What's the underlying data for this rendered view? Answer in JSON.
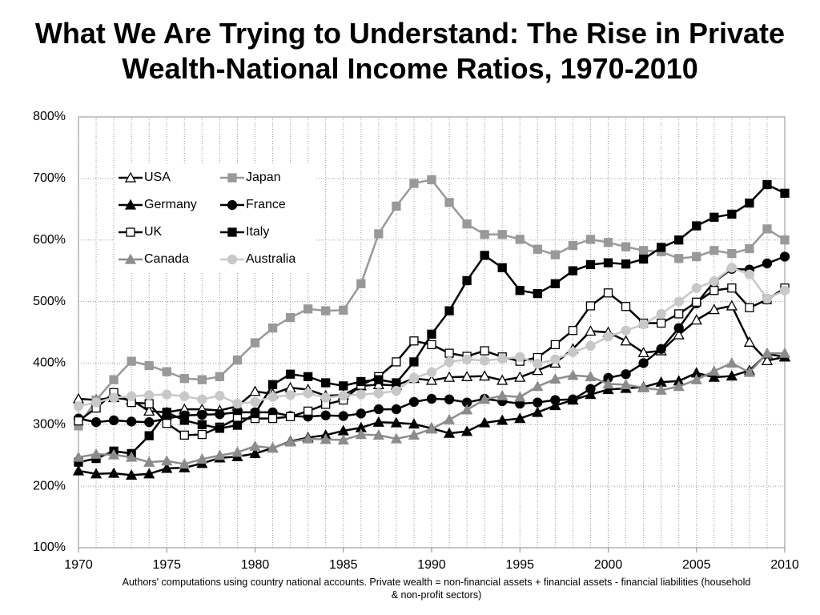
{
  "chart_data": {
    "type": "line",
    "title": "What We Are Trying to Understand: The Rise in Private Wealth-National Income Ratios, 1970-2010",
    "note": "Authors' computations using country national accounts. Private wealth = non-financial assets + financial assets - financial liabilities (household & non-profit sectors)",
    "x": [
      1970,
      1971,
      1972,
      1973,
      1974,
      1975,
      1976,
      1977,
      1978,
      1979,
      1980,
      1981,
      1982,
      1983,
      1984,
      1985,
      1986,
      1987,
      1988,
      1989,
      1990,
      1991,
      1992,
      1993,
      1994,
      1995,
      1996,
      1997,
      1998,
      1999,
      2000,
      2001,
      2002,
      2003,
      2004,
      2005,
      2006,
      2007,
      2008,
      2009,
      2010
    ],
    "xlim": [
      1970,
      2010
    ],
    "xticks": [
      1970,
      1975,
      1980,
      1985,
      1990,
      1995,
      2000,
      2005,
      2010
    ],
    "ylim": [
      100,
      800
    ],
    "yticks": [
      {
        "value": 100,
        "label": "100%"
      },
      {
        "value": 200,
        "label": "200%"
      },
      {
        "value": 300,
        "label": "300%"
      },
      {
        "value": 400,
        "label": "400%"
      },
      {
        "value": 500,
        "label": "500%"
      },
      {
        "value": 600,
        "label": "600%"
      },
      {
        "value": 700,
        "label": "700%"
      },
      {
        "value": 800,
        "label": "800%"
      }
    ],
    "grid": true,
    "legend": "upper-left",
    "series": [
      {
        "name": "USA",
        "color": "#000000",
        "marker": "triangle-open",
        "values": [
          342,
          340,
          344,
          340,
          322,
          320,
          325,
          325,
          323,
          330,
          354,
          350,
          360,
          357,
          347,
          348,
          363,
          365,
          364,
          375,
          372,
          377,
          378,
          379,
          372,
          377,
          388,
          400,
          423,
          452,
          450,
          436,
          417,
          420,
          446,
          470,
          487,
          493,
          434,
          404,
          410
        ]
      },
      {
        "name": "Japan",
        "color": "#999999",
        "marker": "square",
        "values": [
          298,
          340,
          373,
          403,
          396,
          386,
          375,
          373,
          378,
          405,
          433,
          457,
          474,
          488,
          485,
          486,
          529,
          610,
          655,
          692,
          698,
          661,
          626,
          609,
          609,
          601,
          585,
          576,
          591,
          601,
          596,
          589,
          583,
          581,
          570,
          573,
          583,
          578,
          586,
          618,
          600
        ]
      },
      {
        "name": "Germany",
        "color": "#000000",
        "marker": "triangle",
        "values": [
          225,
          220,
          221,
          218,
          220,
          229,
          230,
          237,
          246,
          248,
          253,
          262,
          273,
          279,
          283,
          290,
          295,
          304,
          303,
          301,
          294,
          286,
          289,
          303,
          307,
          310,
          320,
          331,
          340,
          349,
          357,
          359,
          361,
          369,
          371,
          384,
          377,
          379,
          388,
          415,
          410
        ]
      },
      {
        "name": "France",
        "color": "#000000",
        "marker": "circle",
        "values": [
          310,
          304,
          307,
          305,
          304,
          310,
          315,
          316,
          317,
          320,
          320,
          320,
          314,
          313,
          315,
          314,
          318,
          325,
          325,
          337,
          342,
          341,
          336,
          342,
          338,
          334,
          336,
          340,
          341,
          358,
          376,
          382,
          400,
          423,
          457,
          497,
          532,
          553,
          552,
          562,
          573
        ]
      },
      {
        "name": "UK",
        "color": "#000000",
        "marker": "square-open",
        "values": [
          306,
          327,
          352,
          336,
          334,
          302,
          283,
          284,
          296,
          310,
          310,
          310,
          313,
          322,
          333,
          340,
          364,
          378,
          402,
          436,
          430,
          416,
          411,
          420,
          410,
          403,
          409,
          430,
          453,
          493,
          514,
          492,
          465,
          465,
          480,
          499,
          518,
          522,
          490,
          503,
          522
        ]
      },
      {
        "name": "Italy",
        "color": "#000000",
        "marker": "square",
        "values": [
          239,
          245,
          257,
          253,
          282,
          320,
          307,
          300,
          294,
          299,
          318,
          365,
          382,
          378,
          368,
          363,
          370,
          373,
          368,
          402,
          447,
          485,
          534,
          575,
          555,
          518,
          513,
          529,
          550,
          560,
          563,
          561,
          569,
          588,
          600,
          623,
          637,
          642,
          660,
          690,
          676
        ]
      },
      {
        "name": "Canada",
        "color": "#8c8c8c",
        "marker": "triangle",
        "values": [
          247,
          252,
          251,
          247,
          239,
          241,
          236,
          244,
          250,
          255,
          265,
          262,
          272,
          277,
          276,
          275,
          284,
          283,
          277,
          283,
          293,
          308,
          324,
          341,
          347,
          345,
          362,
          374,
          380,
          378,
          366,
          365,
          360,
          356,
          362,
          373,
          387,
          400,
          385,
          416,
          416
        ]
      },
      {
        "name": "Australia",
        "color": "#c8c8c8",
        "marker": "circle",
        "values": [
          330,
          336,
          344,
          346,
          348,
          349,
          346,
          341,
          347,
          334,
          337,
          345,
          348,
          351,
          344,
          347,
          349,
          351,
          355,
          376,
          385,
          402,
          406,
          404,
          407,
          410,
          399,
          406,
          418,
          428,
          443,
          453,
          463,
          480,
          500,
          522,
          533,
          555,
          544,
          505,
          518
        ]
      }
    ]
  }
}
